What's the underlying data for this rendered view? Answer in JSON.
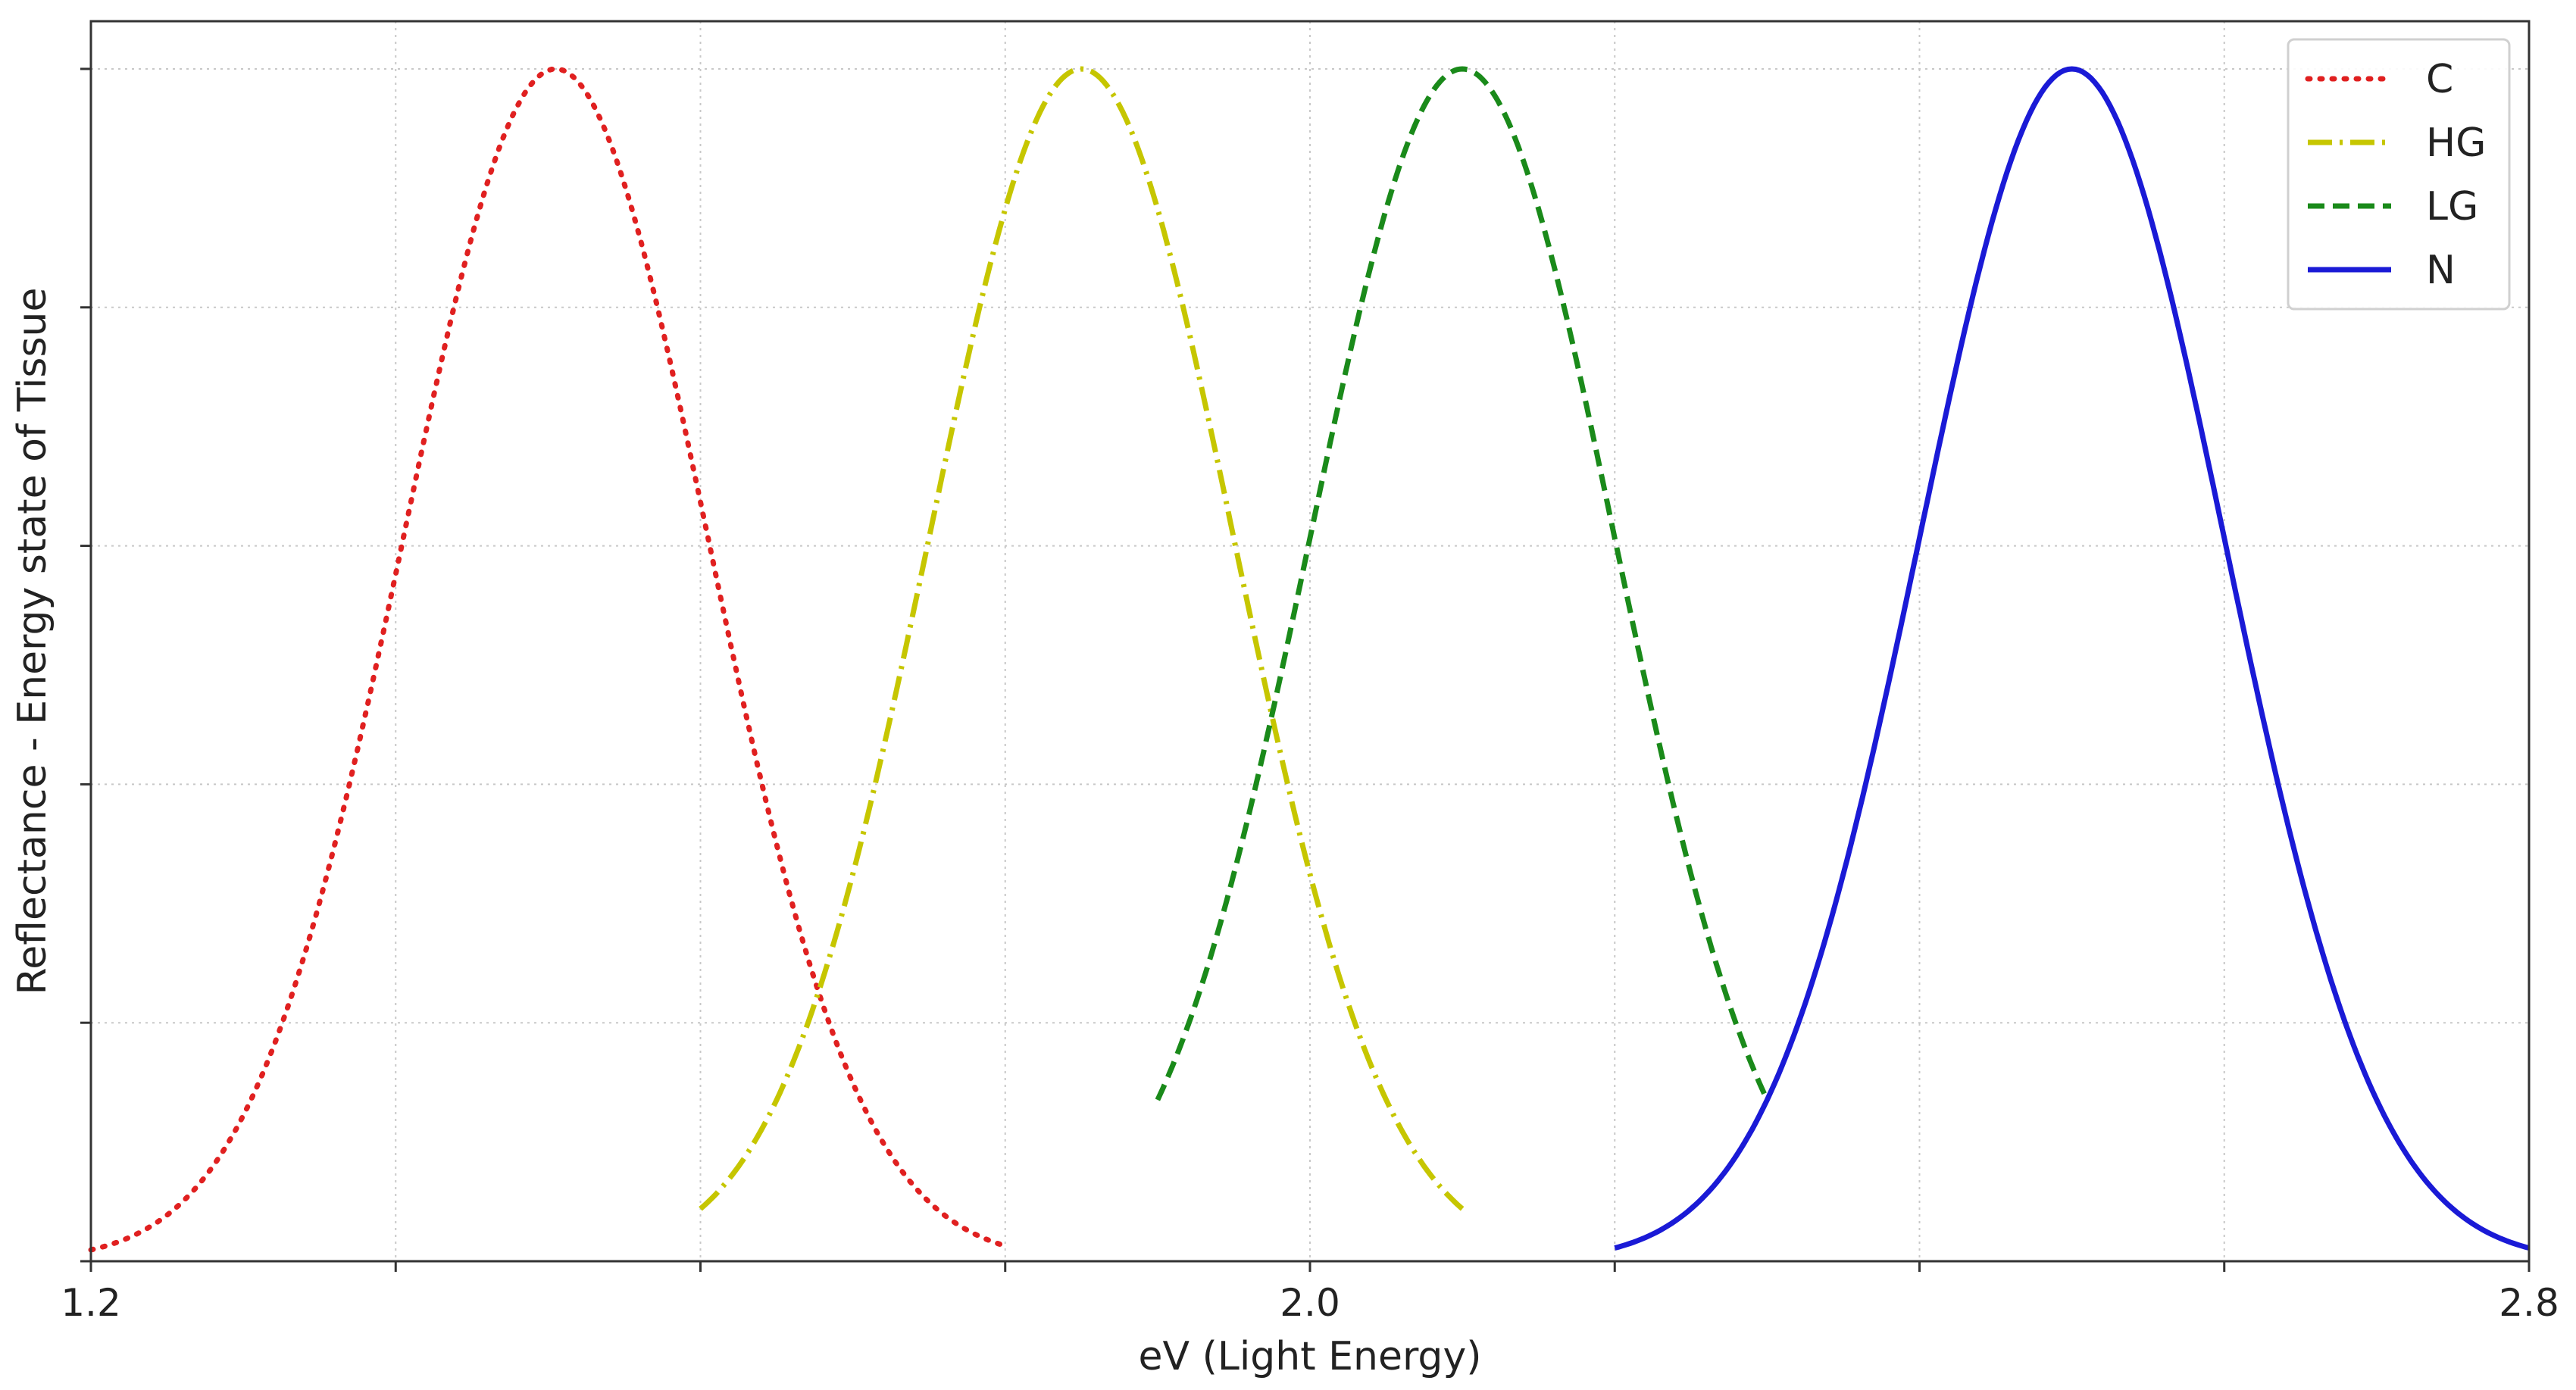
{
  "chart_data": {
    "type": "line",
    "title": "",
    "xlabel": "eV (Light Energy)",
    "ylabel": "Reflectance - Energy state of Tissue",
    "xlim": [
      1.2,
      2.8
    ],
    "ylim": [
      0,
      1.04
    ],
    "x_tick_labels": [
      {
        "value": 1.2,
        "label": "1.2"
      },
      {
        "value": 2.0,
        "label": "2.0"
      },
      {
        "value": 2.8,
        "label": "2.8"
      }
    ],
    "x_minor_ticks": [
      1.4,
      1.6,
      1.8,
      2.2,
      2.4,
      2.6
    ],
    "y_ticks": [
      0.0,
      0.2,
      0.4,
      0.6,
      0.8,
      1.0
    ],
    "y_tick_labels_shown": false,
    "grid": true,
    "legend_position": "top-right",
    "series": [
      {
        "name": "C",
        "color": "#e02020",
        "style": "dotted",
        "peak_x": 1.505,
        "sigma": 0.1,
        "peak_y": 1.0,
        "x_range": [
          1.2,
          1.8
        ]
      },
      {
        "name": "HG",
        "color": "#c6c600",
        "style": "dashdot",
        "peak_x": 1.85,
        "sigma": 0.1,
        "peak_y": 1.0,
        "x_range": [
          1.6,
          2.1
        ]
      },
      {
        "name": "LG",
        "color": "#1a8a1a",
        "style": "dashed",
        "peak_x": 2.1,
        "sigma": 0.1,
        "peak_y": 1.0,
        "x_range": [
          1.9,
          2.3
        ]
      },
      {
        "name": "N",
        "color": "#1a1ad6",
        "style": "solid",
        "peak_x": 2.5,
        "sigma": 0.1,
        "peak_y": 1.0,
        "x_range": [
          2.2,
          2.8
        ]
      }
    ]
  }
}
